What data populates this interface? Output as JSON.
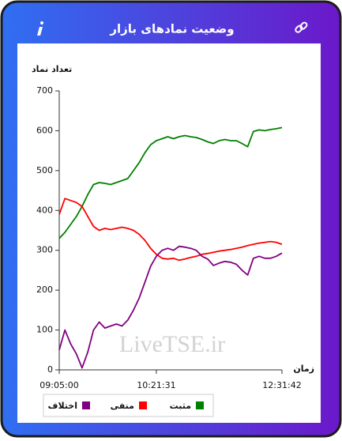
{
  "header": {
    "title": "وضعیت نمادهای بازار"
  },
  "watermark": "LiveTSE.ir",
  "chart_data": {
    "type": "line",
    "y_label": "تعداد نماد",
    "x_label": "زمان",
    "categories": [
      "09:05:00",
      null,
      null,
      null,
      null,
      null,
      null,
      null,
      null,
      null,
      null,
      null,
      null,
      null,
      null,
      null,
      null,
      "10:21:31",
      null,
      null,
      null,
      null,
      null,
      null,
      null,
      null,
      null,
      null,
      null,
      null,
      null,
      null,
      null,
      null,
      null,
      null,
      null,
      null,
      null,
      "12:31:42"
    ],
    "ylim": [
      0,
      700
    ],
    "yticks": [
      0,
      100,
      200,
      300,
      400,
      500,
      600,
      700
    ],
    "series": [
      {
        "name": "مثبت",
        "color": "#008000",
        "values": [
          330,
          345,
          365,
          385,
          410,
          440,
          465,
          470,
          468,
          465,
          470,
          475,
          480,
          500,
          520,
          545,
          565,
          575,
          580,
          585,
          580,
          585,
          588,
          585,
          583,
          578,
          572,
          568,
          575,
          578,
          575,
          575,
          568,
          560,
          598,
          602,
          600,
          603,
          605,
          608
        ]
      },
      {
        "name": "منفی",
        "color": "#ff0000",
        "values": [
          390,
          430,
          425,
          420,
          410,
          385,
          360,
          350,
          355,
          352,
          355,
          358,
          355,
          350,
          340,
          325,
          305,
          290,
          280,
          278,
          280,
          275,
          278,
          282,
          285,
          290,
          292,
          295,
          298,
          300,
          302,
          305,
          308,
          312,
          315,
          318,
          320,
          322,
          320,
          315
        ]
      },
      {
        "name": "اختلاف",
        "color": "#800080",
        "values": [
          50,
          100,
          65,
          40,
          5,
          45,
          100,
          120,
          105,
          110,
          115,
          110,
          125,
          150,
          180,
          220,
          260,
          285,
          300,
          305,
          300,
          310,
          308,
          305,
          300,
          285,
          278,
          262,
          268,
          272,
          270,
          265,
          250,
          238,
          280,
          285,
          280,
          280,
          285,
          293
        ]
      }
    ]
  }
}
